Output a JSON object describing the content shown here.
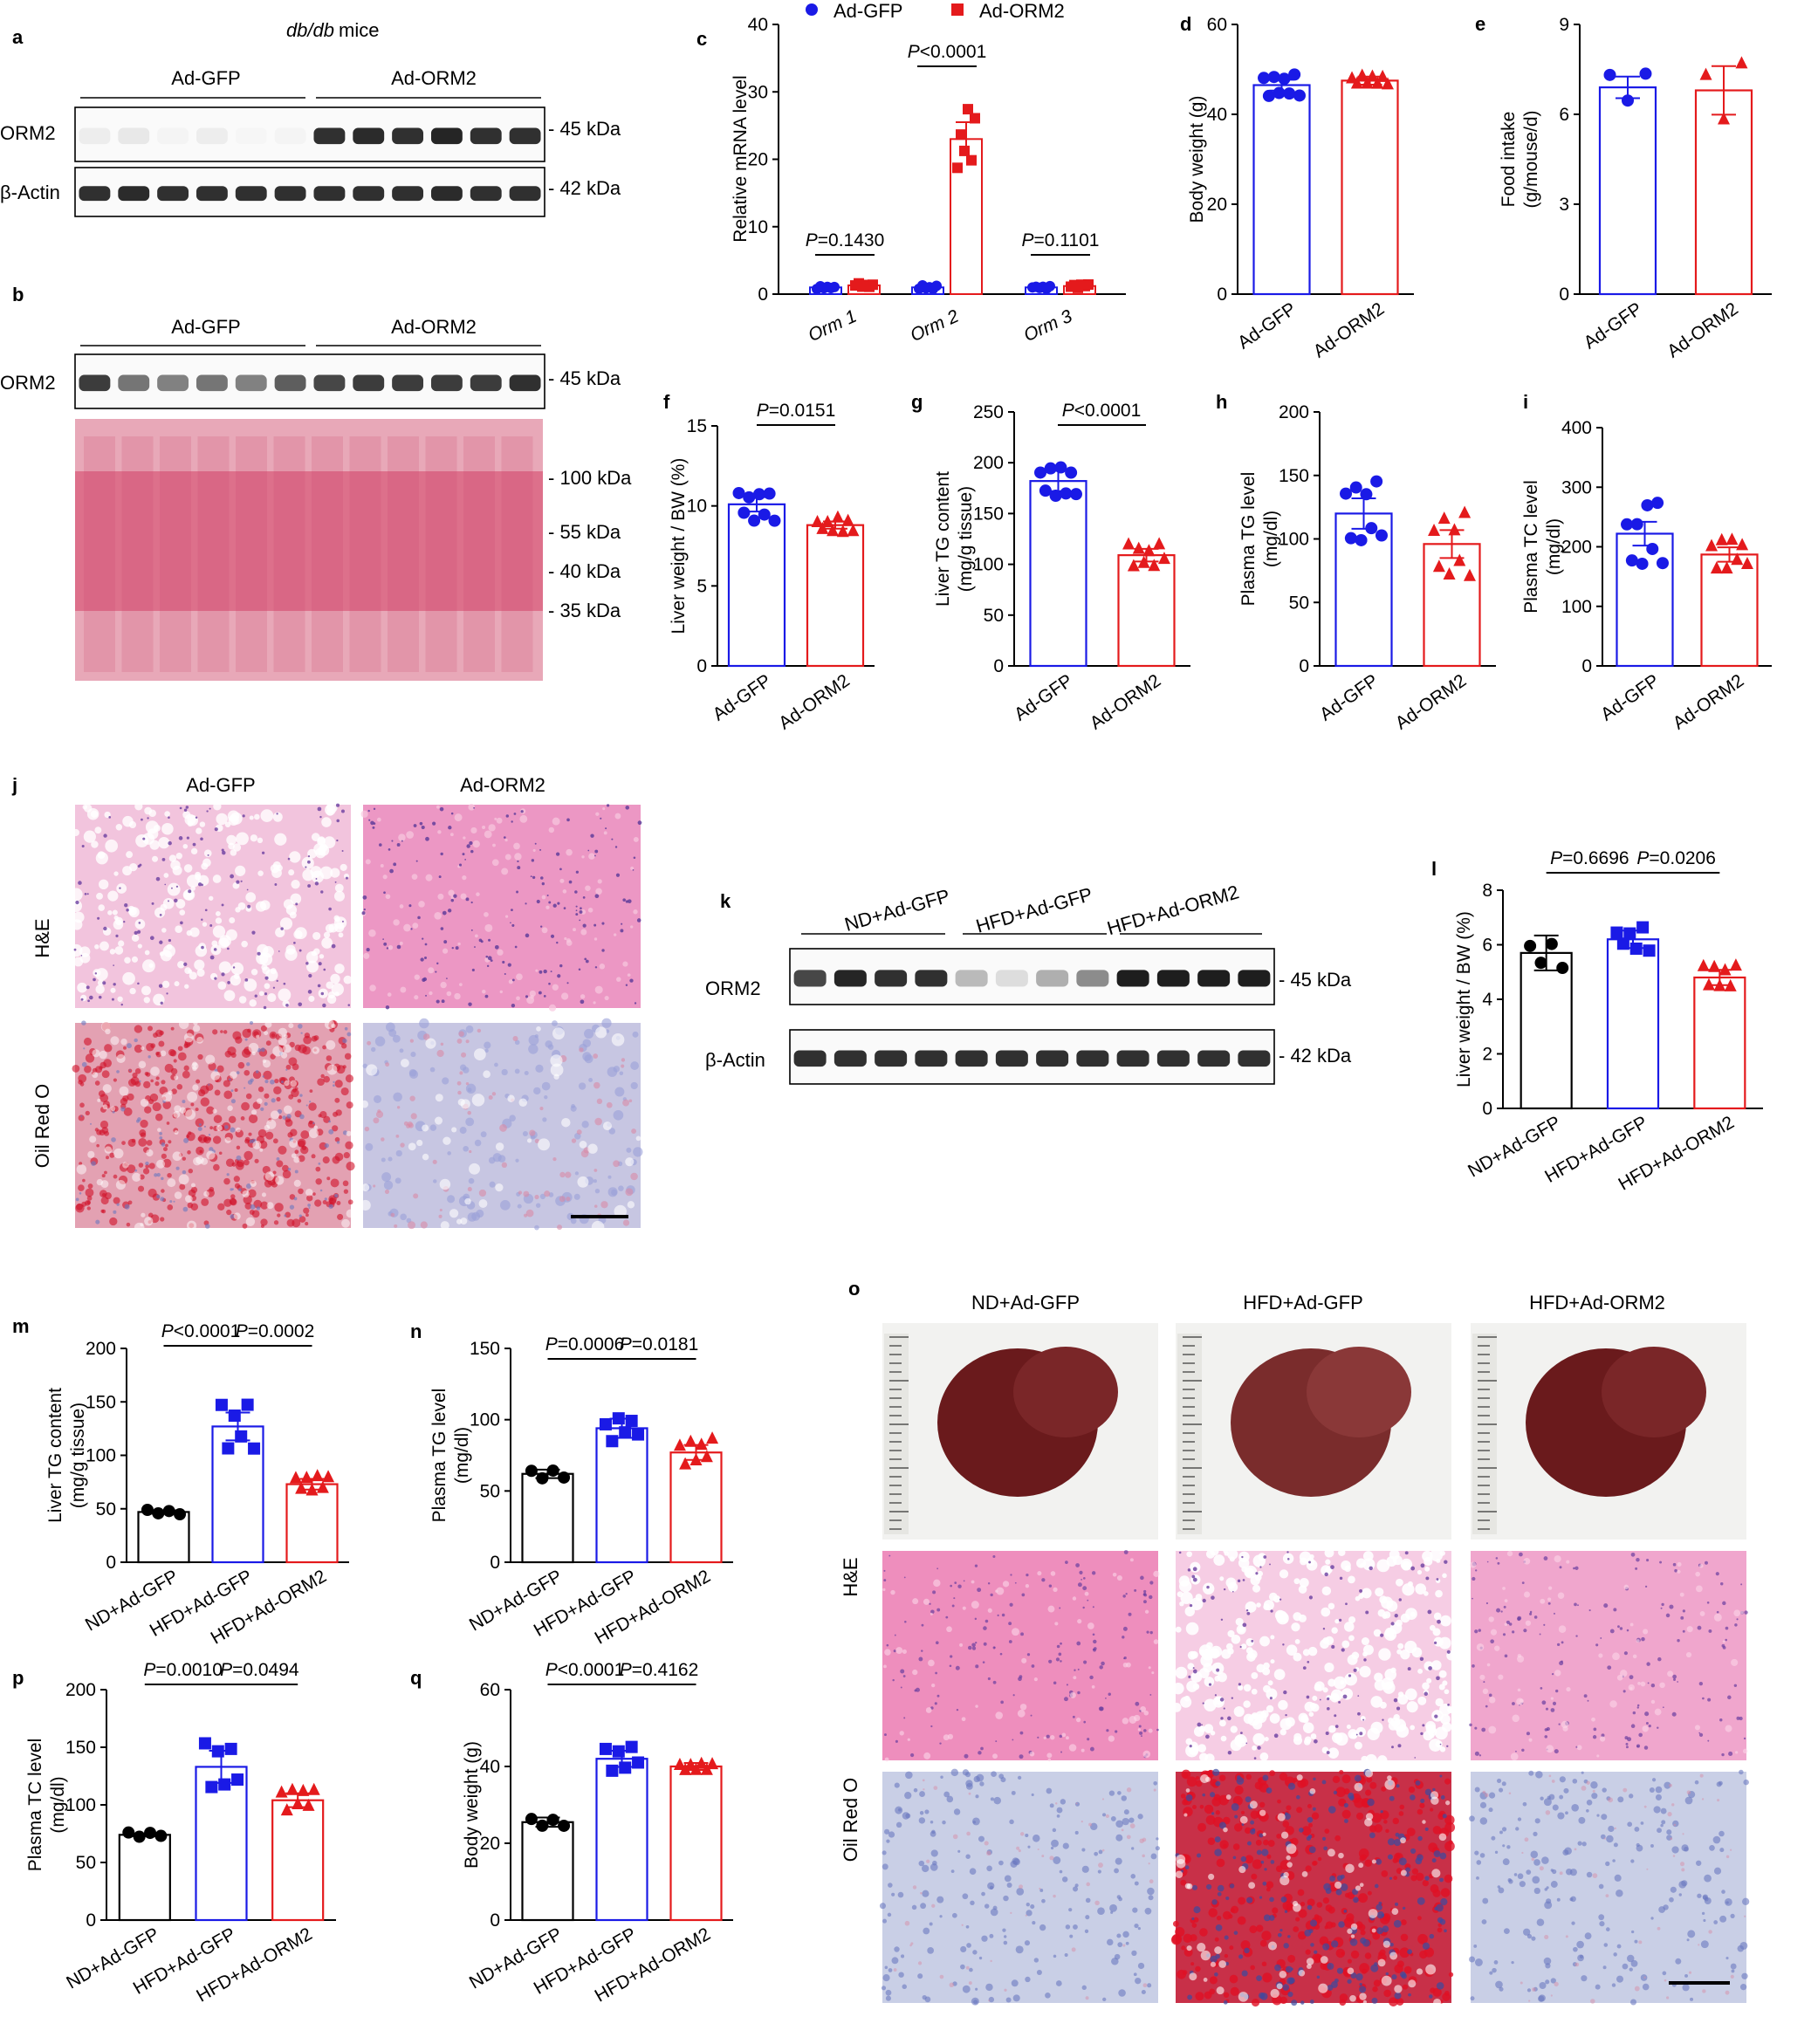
{
  "figure": {
    "blot_a": {
      "panel": "a",
      "top_label": "db/db mice",
      "groups": [
        "Ad-GFP",
        "Ad-ORM2"
      ],
      "rows": [
        {
          "label": "ORM2",
          "size": "45 kDa"
        },
        {
          "label": "β-Actin",
          "size": "42 kDa"
        }
      ]
    },
    "blot_b": {
      "panel": "b",
      "groups": [
        "Ad-GFP",
        "Ad-ORM2"
      ],
      "rows": [
        {
          "label": "ORM2",
          "size": "45 kDa"
        }
      ],
      "stain_markers": [
        "100 kDa",
        "55 kDa",
        "40 kDa",
        "35 kDa"
      ]
    },
    "histology_j": {
      "panel": "j",
      "columns": [
        "Ad-GFP",
        "Ad-ORM2"
      ],
      "rows": [
        "H&E",
        "Oil Red O"
      ]
    },
    "blot_k": {
      "panel": "k",
      "groups": [
        "ND+Ad-GFP",
        "HFD+Ad-GFP",
        "HFD+Ad-ORM2"
      ],
      "rows": [
        {
          "label": "ORM2",
          "size": "45 kDa"
        },
        {
          "label": "β-Actin",
          "size": "42 kDa"
        }
      ]
    },
    "liver_o": {
      "panel": "o",
      "columns": [
        "ND+Ad-GFP",
        "HFD+Ad-GFP",
        "HFD+Ad-ORM2"
      ],
      "rows": [
        "H&E",
        "Oil Red O"
      ]
    },
    "colors": {
      "gfp": "#1a1ae6",
      "orm2": "#e41a1c",
      "nd": "#000000",
      "he_pink": "#ee9fc8",
      "oil_blue": "#b8c2e2",
      "oil_red": "#d01028"
    }
  },
  "chart_data": [
    {
      "panel": "c",
      "type": "bar",
      "categories": [
        "Orm 1",
        "Orm 2",
        "Orm 3"
      ],
      "series": [
        {
          "name": "Ad-GFP",
          "values": [
            1.0,
            1.0,
            1.0
          ]
        },
        {
          "name": "Ad-ORM2",
          "values": [
            1.3,
            23.0,
            1.2
          ]
        }
      ],
      "ylabel": "Relative mRNA level",
      "ylim": [
        0,
        40
      ],
      "yticks": [
        "0",
        "10",
        "20",
        "30",
        "40"
      ],
      "legend": "top",
      "pvalues": [
        "P=0.1430",
        "P<0.0001",
        "P=0.1101"
      ]
    },
    {
      "panel": "d",
      "type": "bar",
      "categories": [
        "Ad-GFP",
        "Ad-ORM2"
      ],
      "values": [
        46.5,
        47.5
      ],
      "ylabel": "Body weight (g)",
      "ylim": [
        0,
        60
      ],
      "yticks": [
        "0",
        "20",
        "40",
        "60"
      ],
      "pvalues": []
    },
    {
      "panel": "e",
      "type": "bar",
      "categories": [
        "Ad-GFP",
        "Ad-ORM2"
      ],
      "values": [
        6.9,
        6.8
      ],
      "ylabel": "Food intake (g/mouse/d)",
      "ylim": [
        0,
        9
      ],
      "yticks": [
        "0",
        "3",
        "6",
        "9"
      ],
      "pvalues": []
    },
    {
      "panel": "f",
      "type": "bar",
      "categories": [
        "Ad-GFP",
        "Ad-ORM2"
      ],
      "values": [
        10.1,
        8.8
      ],
      "ylabel": "Liver weight / BW (%)",
      "ylim": [
        0,
        15
      ],
      "yticks": [
        "0",
        "5",
        "10",
        "15"
      ],
      "pvalues": [
        "P=0.0151"
      ]
    },
    {
      "panel": "g",
      "type": "bar",
      "categories": [
        "Ad-GFP",
        "Ad-ORM2"
      ],
      "values": [
        182,
        109
      ],
      "ylabel": "Liver TG content (mg/g tissue)",
      "ylim": [
        0,
        250
      ],
      "yticks": [
        "0",
        "50",
        "100",
        "150",
        "200",
        "250"
      ],
      "pvalues": [
        "P<0.0001"
      ]
    },
    {
      "panel": "h",
      "type": "bar",
      "categories": [
        "Ad-GFP",
        "Ad-ORM2"
      ],
      "values": [
        120,
        96
      ],
      "ylabel": "Plasma TG level (mg/dl)",
      "ylim": [
        0,
        200
      ],
      "yticks": [
        "0",
        "50",
        "100",
        "150",
        "200"
      ],
      "pvalues": []
    },
    {
      "panel": "i",
      "type": "bar",
      "categories": [
        "Ad-GFP",
        "Ad-ORM2"
      ],
      "values": [
        222,
        187
      ],
      "ylabel": "Plasma TC level (mg/dl)",
      "ylim": [
        0,
        400
      ],
      "yticks": [
        "0",
        "100",
        "200",
        "300",
        "400"
      ],
      "pvalues": []
    },
    {
      "panel": "l",
      "type": "bar",
      "categories": [
        "ND+Ad-GFP",
        "HFD+Ad-GFP",
        "HFD+Ad-ORM2"
      ],
      "values": [
        5.7,
        6.2,
        4.8
      ],
      "ylabel": "Liver weight / BW (%)",
      "ylim": [
        0,
        8
      ],
      "yticks": [
        "0",
        "2",
        "4",
        "6",
        "8"
      ],
      "pvalues": [
        "P=0.6696",
        "P=0.0206"
      ]
    },
    {
      "panel": "m",
      "type": "bar",
      "categories": [
        "ND+Ad-GFP",
        "HFD+Ad-GFP",
        "HFD+Ad-ORM2"
      ],
      "values": [
        47,
        127,
        73
      ],
      "ylabel": "Liver TG content (mg/g tissue)",
      "ylim": [
        0,
        200
      ],
      "yticks": [
        "0",
        "50",
        "100",
        "150",
        "200"
      ],
      "pvalues": [
        "P<0.0001",
        "P=0.0002"
      ]
    },
    {
      "panel": "n",
      "type": "bar",
      "categories": [
        "ND+Ad-GFP",
        "HFD+Ad-GFP",
        "HFD+Ad-ORM2"
      ],
      "values": [
        62,
        94,
        77
      ],
      "ylabel": "Plasma TG level (mg/dl)",
      "ylim": [
        0,
        150
      ],
      "yticks": [
        "0",
        "50",
        "100",
        "150"
      ],
      "pvalues": [
        "P=0.0006",
        "P=0.0181"
      ]
    },
    {
      "panel": "p",
      "type": "bar",
      "categories": [
        "ND+Ad-GFP",
        "HFD+Ad-GFP",
        "HFD+Ad-ORM2"
      ],
      "values": [
        74,
        133,
        104
      ],
      "ylabel": "Plasma TC level (mg/dl)",
      "ylim": [
        0,
        200
      ],
      "yticks": [
        "0",
        "50",
        "100",
        "150",
        "200"
      ],
      "pvalues": [
        "P=0.0010",
        "P=0.0494"
      ]
    },
    {
      "panel": "q",
      "type": "bar",
      "categories": [
        "ND+Ad-GFP",
        "HFD+Ad-GFP",
        "HFD+Ad-ORM2"
      ],
      "values": [
        25.5,
        42,
        40
      ],
      "ylabel": "Body weight (g)",
      "ylim": [
        0,
        60
      ],
      "yticks": [
        "0",
        "20",
        "40",
        "60"
      ],
      "pvalues": [
        "P<0.0001",
        "P=0.4162"
      ]
    }
  ]
}
